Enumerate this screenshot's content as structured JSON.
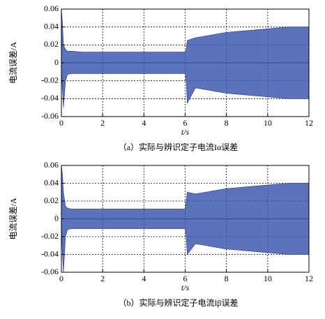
{
  "chart_data": [
    {
      "type": "band",
      "ylabel": "电流误差/A",
      "xlabel": "t/s",
      "caption": "（a）实际与辨识定子电流Iα误差",
      "x": [
        0,
        0.05,
        0.1,
        0.2,
        0.3,
        0.5,
        1,
        1.5,
        2,
        2.5,
        3,
        3.5,
        4,
        4.5,
        5,
        5.5,
        6,
        6.05,
        6.1,
        6.5,
        7,
        7.5,
        8,
        8.5,
        9,
        9.5,
        10,
        10.5,
        11,
        11.5,
        12
      ],
      "y_upper": [
        0.06,
        0.045,
        0.02,
        0.015,
        0.013,
        0.013,
        0.012,
        0.012,
        0.012,
        0.012,
        0.012,
        0.012,
        0.012,
        0.012,
        0.012,
        0.012,
        0.012,
        0.015,
        0.025,
        0.028,
        0.03,
        0.032,
        0.034,
        0.035,
        0.036,
        0.037,
        0.038,
        0.039,
        0.04,
        0.04,
        0.04
      ],
      "y_lower": [
        -0.01,
        -0.03,
        -0.05,
        -0.02,
        -0.013,
        -0.012,
        -0.012,
        -0.012,
        -0.012,
        -0.012,
        -0.012,
        -0.012,
        -0.012,
        -0.012,
        -0.012,
        -0.012,
        -0.012,
        -0.02,
        -0.045,
        -0.028,
        -0.03,
        -0.032,
        -0.034,
        -0.035,
        -0.036,
        -0.037,
        -0.038,
        -0.039,
        -0.04,
        -0.04,
        -0.04
      ],
      "color": "#3f5ab0",
      "xlim": [
        0,
        12
      ],
      "ylim": [
        -0.06,
        0.06
      ],
      "xticks": [
        0,
        2,
        4,
        6,
        8,
        10,
        12
      ],
      "yticks": [
        -0.06,
        -0.04,
        -0.02,
        0,
        0.02,
        0.04,
        0.06
      ],
      "grid": true
    },
    {
      "type": "band",
      "ylabel": "电流误差/A",
      "xlabel": "t/s",
      "caption": "（b）实际与辨识定子电流Iβ误差",
      "x": [
        0,
        0.05,
        0.1,
        0.2,
        0.3,
        0.5,
        1,
        1.5,
        2,
        2.5,
        3,
        3.5,
        4,
        4.5,
        5,
        5.5,
        6,
        6.05,
        6.1,
        6.5,
        7,
        7.5,
        8,
        8.5,
        9,
        9.5,
        10,
        10.5,
        11,
        11.5,
        12
      ],
      "y_upper": [
        0.06,
        0.05,
        0.03,
        0.014,
        0.012,
        0.011,
        0.011,
        0.011,
        0.011,
        0.011,
        0.011,
        0.011,
        0.011,
        0.011,
        0.011,
        0.011,
        0.011,
        0.02,
        0.03,
        0.028,
        0.03,
        0.032,
        0.034,
        0.035,
        0.036,
        0.037,
        0.038,
        0.039,
        0.04,
        0.04,
        0.04
      ],
      "y_lower": [
        -0.01,
        -0.04,
        -0.06,
        -0.02,
        -0.012,
        -0.011,
        -0.011,
        -0.011,
        -0.011,
        -0.011,
        -0.011,
        -0.011,
        -0.011,
        -0.011,
        -0.011,
        -0.011,
        -0.011,
        -0.02,
        -0.04,
        -0.028,
        -0.03,
        -0.032,
        -0.034,
        -0.035,
        -0.036,
        -0.037,
        -0.038,
        -0.039,
        -0.04,
        -0.04,
        -0.04
      ],
      "color": "#3f5ab0",
      "xlim": [
        0,
        12
      ],
      "ylim": [
        -0.06,
        0.06
      ],
      "xticks": [
        0,
        2,
        4,
        6,
        8,
        10,
        12
      ],
      "yticks": [
        -0.06,
        -0.04,
        -0.02,
        0,
        0.02,
        0.04,
        0.06
      ],
      "grid": true
    }
  ]
}
